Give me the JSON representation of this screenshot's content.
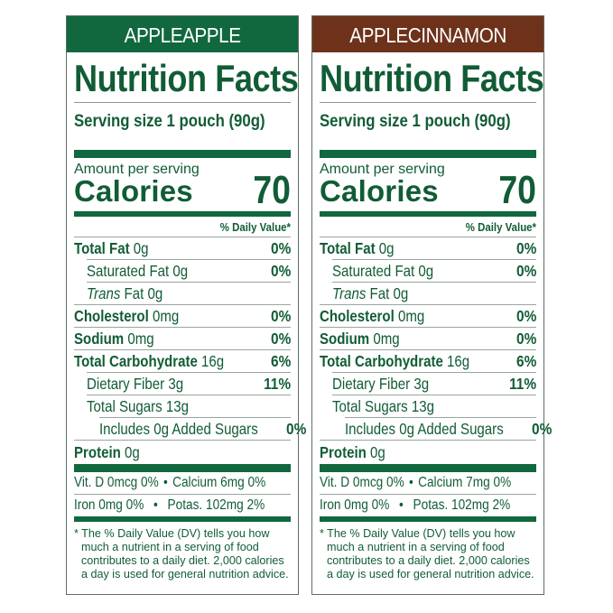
{
  "colors": {
    "label_text": "#115c35",
    "green_header": "#11683f",
    "brown_header": "#6e321b",
    "rule": "#9aa59f"
  },
  "panels": [
    {
      "flavor": "APPLEAPPLE",
      "header_color": "#11683f",
      "title": "Nutrition Facts",
      "serving_size": "Serving size 1 pouch (90g)",
      "amount_per_serving": "Amount per serving",
      "calories_label": "Calories",
      "calories_value": "70",
      "dv_header": "% Daily Value*",
      "nutrients": [
        {
          "name": "Total Fat",
          "amount": "0g",
          "dv": "0%",
          "bold": true,
          "indent": 0
        },
        {
          "name": "Saturated Fat",
          "amount": "0g",
          "dv": "0%",
          "bold": false,
          "indent": 1
        },
        {
          "name_italic": "Trans",
          "name": "Fat",
          "amount": "0g",
          "dv": "",
          "bold": false,
          "indent": 1
        },
        {
          "name": "Cholesterol",
          "amount": "0mg",
          "dv": "0%",
          "bold": true,
          "indent": 0
        },
        {
          "name": "Sodium",
          "amount": "0mg",
          "dv": "0%",
          "bold": true,
          "indent": 0
        },
        {
          "name": "Total Carbohydrate",
          "amount": "16g",
          "dv": "6%",
          "bold": true,
          "indent": 0
        },
        {
          "name": "Dietary Fiber",
          "amount": "3g",
          "dv": "11%",
          "bold": false,
          "indent": 1
        },
        {
          "name": "Total Sugars",
          "amount": "13g",
          "dv": "",
          "bold": false,
          "indent": 1
        },
        {
          "name": "Includes 0g Added Sugars",
          "amount": "",
          "dv": "0%",
          "bold": false,
          "indent": 2
        },
        {
          "name": "Protein",
          "amount": "0g",
          "dv": "",
          "bold": true,
          "indent": 0
        }
      ],
      "vitamins": [
        {
          "left": "Vit. D 0mcg 0%",
          "sep": "•",
          "right": "Calcium 6mg 0%"
        },
        {
          "left": "Iron 0mg 0%",
          "sep": "•",
          "right": "Potas. 102mg 2%"
        }
      ],
      "footnote": "* The % Daily Value (DV) tells you how much a nutrient in a serving of food contributes to a daily diet. 2,000 calories a day is used for general nutrition advice."
    },
    {
      "flavor": "APPLECINNAMON",
      "header_color": "#6e321b",
      "title": "Nutrition Facts",
      "serving_size": "Serving size 1 pouch (90g)",
      "amount_per_serving": "Amount per serving",
      "calories_label": "Calories",
      "calories_value": "70",
      "dv_header": "% Daily Value*",
      "nutrients": [
        {
          "name": "Total Fat",
          "amount": "0g",
          "dv": "0%",
          "bold": true,
          "indent": 0
        },
        {
          "name": "Saturated Fat",
          "amount": "0g",
          "dv": "0%",
          "bold": false,
          "indent": 1
        },
        {
          "name_italic": "Trans",
          "name": "Fat",
          "amount": "0g",
          "dv": "",
          "bold": false,
          "indent": 1
        },
        {
          "name": "Cholesterol",
          "amount": "0mg",
          "dv": "0%",
          "bold": true,
          "indent": 0
        },
        {
          "name": "Sodium",
          "amount": "0mg",
          "dv": "0%",
          "bold": true,
          "indent": 0
        },
        {
          "name": "Total Carbohydrate",
          "amount": "16g",
          "dv": "6%",
          "bold": true,
          "indent": 0
        },
        {
          "name": "Dietary Fiber",
          "amount": "3g",
          "dv": "11%",
          "bold": false,
          "indent": 1
        },
        {
          "name": "Total Sugars",
          "amount": "13g",
          "dv": "",
          "bold": false,
          "indent": 1
        },
        {
          "name": "Includes 0g Added Sugars",
          "amount": "",
          "dv": "0%",
          "bold": false,
          "indent": 2
        },
        {
          "name": "Protein",
          "amount": "0g",
          "dv": "",
          "bold": true,
          "indent": 0
        }
      ],
      "vitamins": [
        {
          "left": "Vit. D 0mcg 0%",
          "sep": "•",
          "right": "Calcium 7mg 0%"
        },
        {
          "left": "Iron 0mg 0%",
          "sep": "•",
          "right": "Potas. 102mg 2%"
        }
      ],
      "footnote": "* The % Daily Value (DV) tells you how much a nutrient in a serving of food contributes to a daily diet. 2,000 calories a day is used for general nutrition advice."
    }
  ]
}
